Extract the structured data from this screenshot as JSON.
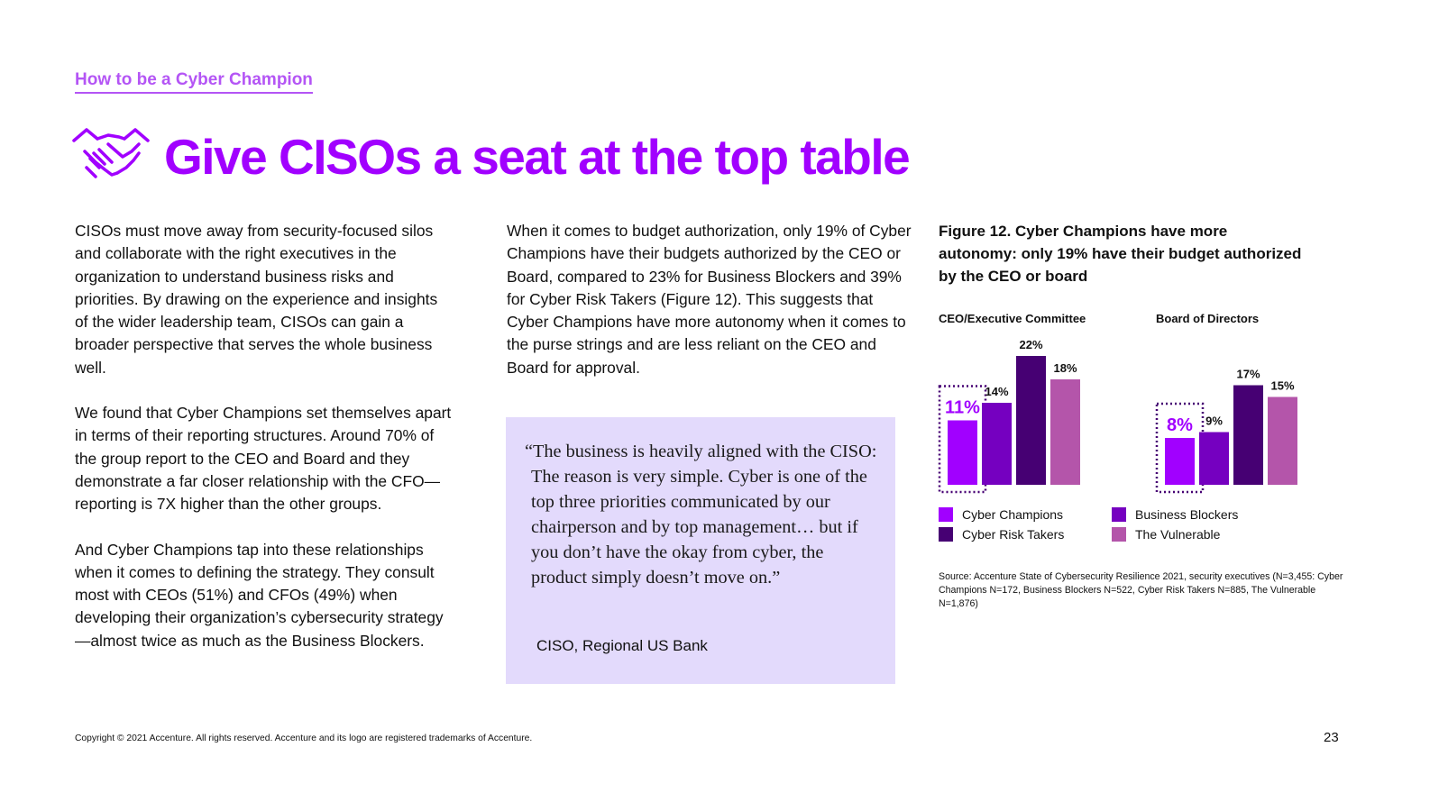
{
  "header": {
    "section_link": "How to be a Cyber Champion",
    "title": "Give CISOs a seat at the top table",
    "icon": "handshake-icon"
  },
  "body": {
    "col1": [
      "CISOs must move away from security-focused silos and collaborate with the right executives in the organization to understand business risks and priorities. By drawing on the experience and insights of the wider leadership team, CISOs can gain a broader perspective that serves the whole business well.",
      "We found that Cyber Champions set themselves apart in terms of their reporting structures. Around 70% of the group report to the CEO and Board and they demonstrate a far closer relationship with the CFO—reporting is 7X higher than the other groups.",
      "And Cyber Champions tap into these relationships when it comes to defining the strategy. They consult most with CEOs (51%) and CFOs (49%) when developing their organization’s cybersecurity strategy—almost twice as much as the Business Blockers."
    ],
    "col2": [
      "When it comes to budget authorization, only 19% of Cyber Champions have their budgets authorized by the CEO or Board, compared to 23% for Business Blockers and 39% for Cyber Risk Takers (Figure 12). This suggests that Cyber Champions have more autonomy when it comes to the purse strings and are less reliant on the CEO and Board for approval."
    ]
  },
  "quote": {
    "text": "“The business is heavily aligned with the CISO: The reason is very simple. Cyber is one of the top three priorities communicated by our chairperson and by top management… but if you don’t have the okay from cyber, the product simply doesn’t move on.”",
    "attribution": "CISO, Regional US Bank"
  },
  "figure": {
    "title": "Figure 12. Cyber Champions have more autonomy: only 19% have their budget authorized by the CEO or board",
    "source": "Source: Accenture State of Cybersecurity Resilience 2021, security executives (N=3,455: Cyber Champions N=172, Business Blockers N=522, Cyber Risk Takers N=885, The Vulnerable N=1,876)"
  },
  "chart_data": {
    "type": "bar",
    "title": "Figure 12. Cyber Champions have more autonomy: only 19% have their budget authorized by the CEO or board",
    "categories": [
      "CEO/Executive Committee",
      "Board of Directors"
    ],
    "series": [
      {
        "name": "Cyber Champions",
        "values": [
          11,
          8
        ],
        "labels": [
          "11%",
          "8%"
        ],
        "color": "#a100ff"
      },
      {
        "name": "Business Blockers",
        "values": [
          14,
          9
        ],
        "labels": [
          "14%",
          "9%"
        ],
        "color": "#7500c0"
      },
      {
        "name": "Cyber Risk Takers",
        "values": [
          22,
          17
        ],
        "labels": [
          "22%",
          "17%"
        ],
        "color": "#460073"
      },
      {
        "name": "The Vulnerable",
        "values": [
          18,
          15
        ],
        "labels": [
          "18%",
          "15%"
        ],
        "color": "#b455aa"
      }
    ],
    "legend": [
      {
        "name": "Cyber Champions",
        "color": "#a100ff"
      },
      {
        "name": "Business Blockers",
        "color": "#7500c0"
      },
      {
        "name": "Cyber Risk Takers",
        "color": "#460073"
      },
      {
        "name": "The Vulnerable",
        "color": "#b455aa"
      }
    ],
    "highlight_series": "Cyber Champions",
    "ylim": [
      0,
      25
    ],
    "xlabel": "",
    "ylabel": ""
  },
  "footer": {
    "copyright": "Copyright © 2021 Accenture. All rights reserved. Accenture and its logo are registered trademarks of Accenture.",
    "page_number": "23"
  },
  "colors": {
    "accent": "#a100ff",
    "link": "#b455f5",
    "quote_bg": "#e3dafc"
  }
}
